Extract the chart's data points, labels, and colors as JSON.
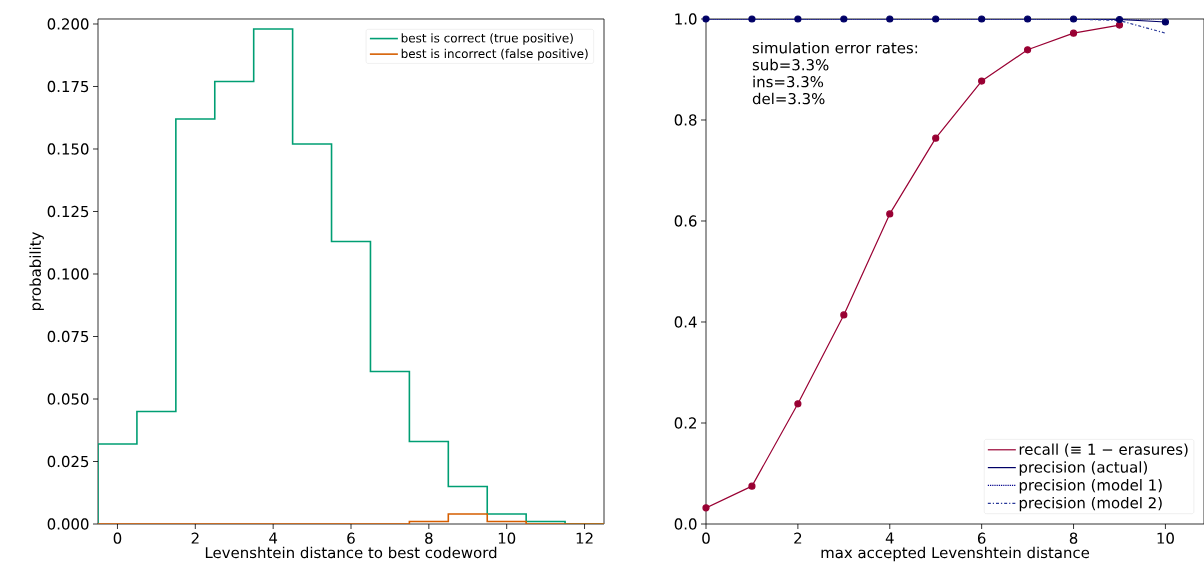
{
  "chart_data": [
    {
      "type": "histogram",
      "xlabel": "Levenshtein distance to best codeword",
      "ylabel": "probability",
      "bins": [
        -0.5,
        0.5,
        1.5,
        2.5,
        3.5,
        4.5,
        5.5,
        6.5,
        7.5,
        8.5,
        9.5,
        10.5,
        11.5,
        12.5
      ],
      "series": [
        {
          "name": "best is correct (true positive)",
          "color": "#009e73",
          "values": [
            0.032,
            0.045,
            0.162,
            0.177,
            0.198,
            0.152,
            0.113,
            0.061,
            0.033,
            0.015,
            0.004,
            0.001,
            0
          ]
        },
        {
          "name": "best is incorrect (false positive)",
          "color": "#d55e00",
          "values": [
            0,
            0,
            0,
            0,
            0,
            0,
            0,
            0,
            0.001,
            0.004,
            0.001,
            0,
            0
          ]
        }
      ],
      "xlim": [
        -0.5,
        12.5
      ],
      "ylim": [
        0,
        0.202
      ],
      "xticks": [
        0,
        2,
        4,
        6,
        8,
        10,
        12
      ],
      "yticks": [
        {
          "value": 0,
          "label": "0.000"
        },
        {
          "value": 0.025,
          "label": "0.025"
        },
        {
          "value": 0.05,
          "label": "0.050"
        },
        {
          "value": 0.075,
          "label": "0.075"
        },
        {
          "value": 0.1,
          "label": "0.100"
        },
        {
          "value": 0.125,
          "label": "0.125"
        },
        {
          "value": 0.15,
          "label": "0.150"
        },
        {
          "value": 0.175,
          "label": "0.175"
        },
        {
          "value": 0.2,
          "label": "0.200"
        }
      ],
      "legend": "top right",
      "grid": false
    },
    {
      "type": "line",
      "xlabel": "max accepted Levenshtein distance",
      "x": [
        0,
        1,
        2,
        3,
        4,
        5,
        6,
        7,
        8,
        9,
        10
      ],
      "series": [
        {
          "name": "recall (≡ 1 − erasures)",
          "color": "#990033",
          "marker": "circle",
          "line_style": "solid",
          "values": [
            0.032,
            0.075,
            0.238,
            0.414,
            0.614,
            0.764,
            0.877,
            0.939,
            0.972,
            0.988,
            null
          ]
        },
        {
          "name": "precision (actual)",
          "color": "#000066",
          "marker": "circle",
          "line_style": "solid",
          "values": [
            1,
            1,
            1,
            1,
            1,
            1,
            1,
            1,
            1,
            0.999,
            0.994
          ]
        },
        {
          "name": "precision (model 1)",
          "color": "#00008b",
          "marker": "none",
          "line_style": "dotted",
          "values": [
            1,
            1,
            1,
            1,
            1,
            1,
            1,
            1,
            1,
            1,
            1
          ]
        },
        {
          "name": "precision (model 2)",
          "color": "#2a3a9a",
          "marker": "none",
          "line_style": "dashdot",
          "values": [
            1,
            1,
            1,
            1,
            1,
            1,
            1,
            1,
            1,
            0.997,
            0.972
          ]
        }
      ],
      "xlim": [
        0,
        10.84
      ],
      "ylim": [
        0,
        1
      ],
      "xticks": [
        0,
        2,
        4,
        6,
        8,
        10
      ],
      "yticks": [
        {
          "value": 0,
          "label": "0.0"
        },
        {
          "value": 0.2,
          "label": "0.2"
        },
        {
          "value": 0.4,
          "label": "0.4"
        },
        {
          "value": 0.6,
          "label": "0.6"
        },
        {
          "value": 0.8,
          "label": "0.8"
        },
        {
          "value": 1,
          "label": "1.0"
        }
      ],
      "annotations": [
        "simulation error rates:",
        "sub=3.3%",
        "ins=3.3%",
        "del=3.3%"
      ],
      "legend": "bottom right",
      "grid": false
    }
  ]
}
